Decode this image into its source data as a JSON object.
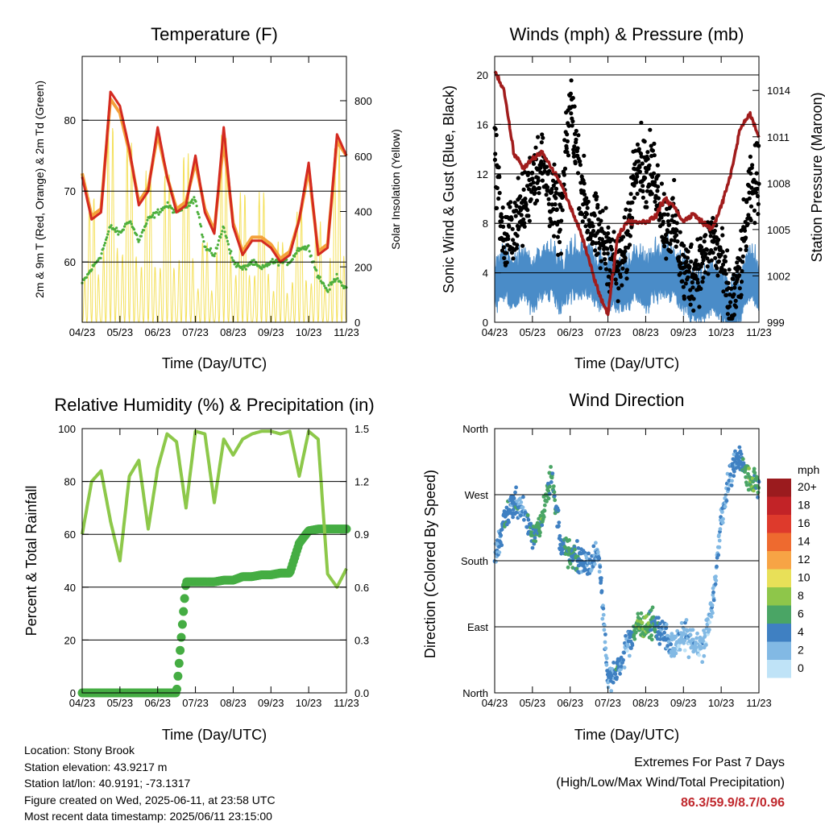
{
  "x_ticks": [
    "04/23",
    "05/23",
    "06/23",
    "07/23",
    "08/23",
    "09/23",
    "10/23",
    "11/23"
  ],
  "xlabel": "Time (Day/UTC)",
  "panels": {
    "temperature": {
      "title": "Temperature (F)",
      "ylabel_left": "2m & 9m T (Red, Orange) & 2m Td (Green)",
      "ylabel_right": "Solar Insolation (Yellow)",
      "yticks_left": [
        60,
        70,
        80
      ],
      "yticks_right": [
        0,
        200,
        400,
        600,
        800
      ]
    },
    "winds": {
      "title": "Winds (mph) & Pressure (mb)",
      "ylabel_left": "Sonic Wind & Gust (Blue, Black)",
      "ylabel_right": "Station Pressure (Maroon)",
      "yticks_left": [
        0,
        4,
        8,
        12,
        16,
        20
      ],
      "yticks_right": [
        999,
        1002,
        1005,
        1008,
        1011,
        1014
      ]
    },
    "humidity": {
      "title": "Relative Humidity (%) & Precipitation (in)",
      "ylabel_left": "Percent & Total Rainfall",
      "yticks_left": [
        0,
        20,
        40,
        60,
        80,
        100
      ],
      "yticks_right": [
        "0.0",
        "0.3",
        "0.6",
        "0.9",
        "1.2",
        "1.5"
      ]
    },
    "direction": {
      "title": "Wind Direction",
      "ylabel_left": "Direction (Colored By Speed)",
      "yticks_left": [
        "North",
        "East",
        "South",
        "West",
        "North"
      ]
    }
  },
  "legend": {
    "title": "mph",
    "labels": [
      "20+",
      "18",
      "16",
      "14",
      "12",
      "10",
      "8",
      "6",
      "4",
      "2",
      "0"
    ],
    "colors": [
      "#9b1b1e",
      "#c22327",
      "#de3a2c",
      "#ee6a2f",
      "#f7a445",
      "#e8e058",
      "#8ec64a",
      "#4aa565",
      "#3f80c2",
      "#82b9e4",
      "#bfe3f7"
    ]
  },
  "info": {
    "location": "Location: Stony Brook",
    "elevation": "Station elevation: 43.9217 m",
    "latlon": "Station lat/lon: 40.9191; -73.1317",
    "created": "Figure created on Wed, 2025-06-11, at 23:58 UTC",
    "recent": "Most recent data timestamp: 2025/06/11 23:15:00"
  },
  "extremes": {
    "line1": "Extremes For Past 7 Days",
    "line2": "(High/Low/Max Wind/Total Precipitation)",
    "values": "86.3/59.9/8.7/0.96"
  },
  "chart_data": [
    {
      "type": "line",
      "title": "Temperature (F)",
      "xlabel": "Time (Day/UTC)",
      "ylabel": "2m & 9m T (Red, Orange) & 2m Td (Green)",
      "y2label": "Solar Insolation (Yellow)",
      "ylim": [
        51.5,
        89
      ],
      "y2lim": [
        0,
        960
      ],
      "x": [
        0,
        0.25,
        0.5,
        0.75,
        1,
        1.25,
        1.5,
        1.75,
        2,
        2.25,
        2.5,
        2.75,
        3,
        3.25,
        3.5,
        3.75,
        4,
        4.25,
        4.5,
        4.75,
        5,
        5.25,
        5.5,
        5.75,
        6,
        6.25,
        6.5,
        6.75,
        7
      ],
      "series": [
        {
          "name": "2m T",
          "color": "#d42a20",
          "values": [
            72,
            66,
            67,
            84,
            82,
            76,
            68,
            70,
            79,
            72,
            67,
            68,
            75,
            67,
            64,
            79,
            65,
            61,
            63,
            63,
            62,
            60,
            61,
            66,
            74,
            61,
            62,
            78,
            75
          ]
        },
        {
          "name": "9m T",
          "color": "#f4a13a",
          "values": [
            72.5,
            66.5,
            67.5,
            83,
            81,
            75.5,
            68.5,
            70.5,
            78,
            72,
            67.5,
            68.5,
            74,
            67.5,
            64.5,
            77,
            65.5,
            61.5,
            63.5,
            63.5,
            62.5,
            60.5,
            61.5,
            66,
            73,
            61.5,
            62.5,
            77,
            75
          ]
        },
        {
          "name": "2m Td",
          "color": "#4caf3c",
          "values": [
            57,
            59,
            61,
            65,
            64,
            66,
            63,
            66,
            67,
            68,
            67,
            68,
            69,
            62,
            61,
            65,
            60,
            59,
            60,
            59,
            60,
            60,
            60,
            62,
            62,
            58,
            56,
            58,
            56
          ]
        },
        {
          "name": "Solar Insolation",
          "color": "#f4e05a",
          "axis": "right",
          "values": [
            10,
            600,
            20,
            940,
            30,
            860,
            20,
            720,
            20,
            700,
            20,
            800,
            30,
            380,
            20,
            900,
            10,
            620,
            10,
            620,
            20,
            380,
            10,
            530,
            20,
            480,
            10,
            850,
            20
          ]
        }
      ]
    },
    {
      "type": "scatter",
      "title": "Winds (mph) & Pressure (mb)",
      "xlabel": "Time (Day/UTC)",
      "ylabel": "Sonic Wind & Gust (Blue, Black)",
      "y2label": "Station Pressure (Maroon)",
      "ylim": [
        0,
        21.5
      ],
      "y2lim": [
        999,
        1016.2
      ],
      "x": [
        0,
        0.25,
        0.5,
        0.75,
        1,
        1.25,
        1.5,
        1.75,
        2,
        2.25,
        2.5,
        2.75,
        3,
        3.25,
        3.5,
        3.75,
        4,
        4.25,
        4.5,
        4.75,
        5,
        5.25,
        5.5,
        5.75,
        6,
        6.25,
        6.5,
        6.75,
        7
      ],
      "series": [
        {
          "name": "Sonic Wind",
          "color": "#4a8cc8",
          "values": [
            3,
            4,
            3,
            4,
            3,
            4,
            4,
            3,
            4,
            4,
            4,
            3,
            3,
            3,
            3,
            4,
            3,
            4,
            4,
            4,
            3,
            2,
            2,
            3,
            2,
            1,
            2,
            4,
            3
          ]
        },
        {
          "name": "Gust",
          "color": "#000000",
          "values": [
            14,
            6,
            8,
            9,
            12,
            13,
            10,
            8,
            18,
            12,
            8,
            7,
            6,
            4,
            6,
            14,
            12,
            12,
            8,
            8,
            4,
            4,
            5,
            7,
            5,
            1,
            4,
            10,
            12
          ]
        },
        {
          "name": "Station Pressure",
          "color": "#a11c1c",
          "axis": "right",
          "values": [
            1015.3,
            1014,
            1010,
            1009,
            1009.5,
            1010,
            1009,
            1008,
            1006.5,
            1005,
            1003,
            1001,
            999.5,
            1004.5,
            1005.5,
            1005.5,
            1005.5,
            1005.8,
            1007,
            1006.5,
            1005.5,
            1006,
            1005.5,
            1005,
            1006.5,
            1008.5,
            1011.5,
            1012.5,
            1011
          ]
        }
      ]
    },
    {
      "type": "line",
      "title": "Relative Humidity (%) & Precipitation (in)",
      "xlabel": "Time (Day/UTC)",
      "ylabel": "Percent & Total Rainfall",
      "ylim": [
        0,
        100
      ],
      "y2lim": [
        0,
        1.5
      ],
      "x": [
        0,
        0.25,
        0.5,
        0.75,
        1,
        1.25,
        1.5,
        1.75,
        2,
        2.25,
        2.5,
        2.75,
        3,
        3.25,
        3.5,
        3.75,
        4,
        4.25,
        4.5,
        4.75,
        5,
        5.25,
        5.5,
        5.75,
        6,
        6.25,
        6.5,
        6.75,
        7
      ],
      "series": [
        {
          "name": "Relative Humidity",
          "color": "#8dc84a",
          "values": [
            60,
            80,
            84,
            65,
            50,
            82,
            88,
            62,
            85,
            98,
            95,
            70,
            99,
            98,
            72,
            96,
            90,
            96,
            98,
            99,
            99,
            98,
            99,
            82,
            99,
            96,
            45,
            40,
            47
          ]
        },
        {
          "name": "Total Precipitation",
          "color": "#45ad43",
          "axis": "right",
          "values": [
            0,
            0,
            0,
            0,
            0,
            0,
            0,
            0,
            0,
            0,
            0,
            0.63,
            0.63,
            0.63,
            0.63,
            0.64,
            0.64,
            0.66,
            0.66,
            0.67,
            0.67,
            0.68,
            0.68,
            0.85,
            0.92,
            0.93,
            0.93,
            0.93,
            0.93
          ]
        }
      ]
    },
    {
      "type": "scatter",
      "title": "Wind Direction",
      "xlabel": "Time (Day/UTC)",
      "ylabel": "Direction (Colored By Speed)",
      "y_categories": [
        "North",
        "East",
        "South",
        "West",
        "North"
      ],
      "ylim": [
        0,
        360
      ],
      "x": [
        0,
        0.25,
        0.5,
        0.75,
        1,
        1.25,
        1.5,
        1.75,
        2,
        2.25,
        2.5,
        2.75,
        3,
        3.25,
        3.5,
        3.75,
        4,
        4.25,
        4.5,
        4.75,
        5,
        5.25,
        5.5,
        5.75,
        6,
        6.25,
        6.5,
        6.75,
        7
      ],
      "series": [
        {
          "name": "Wind Direction (deg)",
          "values": [
            180,
            235,
            260,
            250,
            210,
            240,
            300,
            200,
            190,
            180,
            175,
            195,
            20,
            30,
            65,
            90,
            95,
            90,
            80,
            60,
            80,
            70,
            60,
            110,
            240,
            300,
            320,
            290,
            280
          ]
        },
        {
          "name": "Wind Speed (mph)",
          "values": [
            3,
            4,
            4,
            3,
            5,
            6,
            6,
            4,
            6,
            4,
            3,
            3,
            3,
            4,
            2,
            6,
            7,
            5,
            3,
            2,
            2,
            2,
            2,
            2,
            3,
            3,
            4,
            7,
            5
          ]
        }
      ]
    }
  ]
}
